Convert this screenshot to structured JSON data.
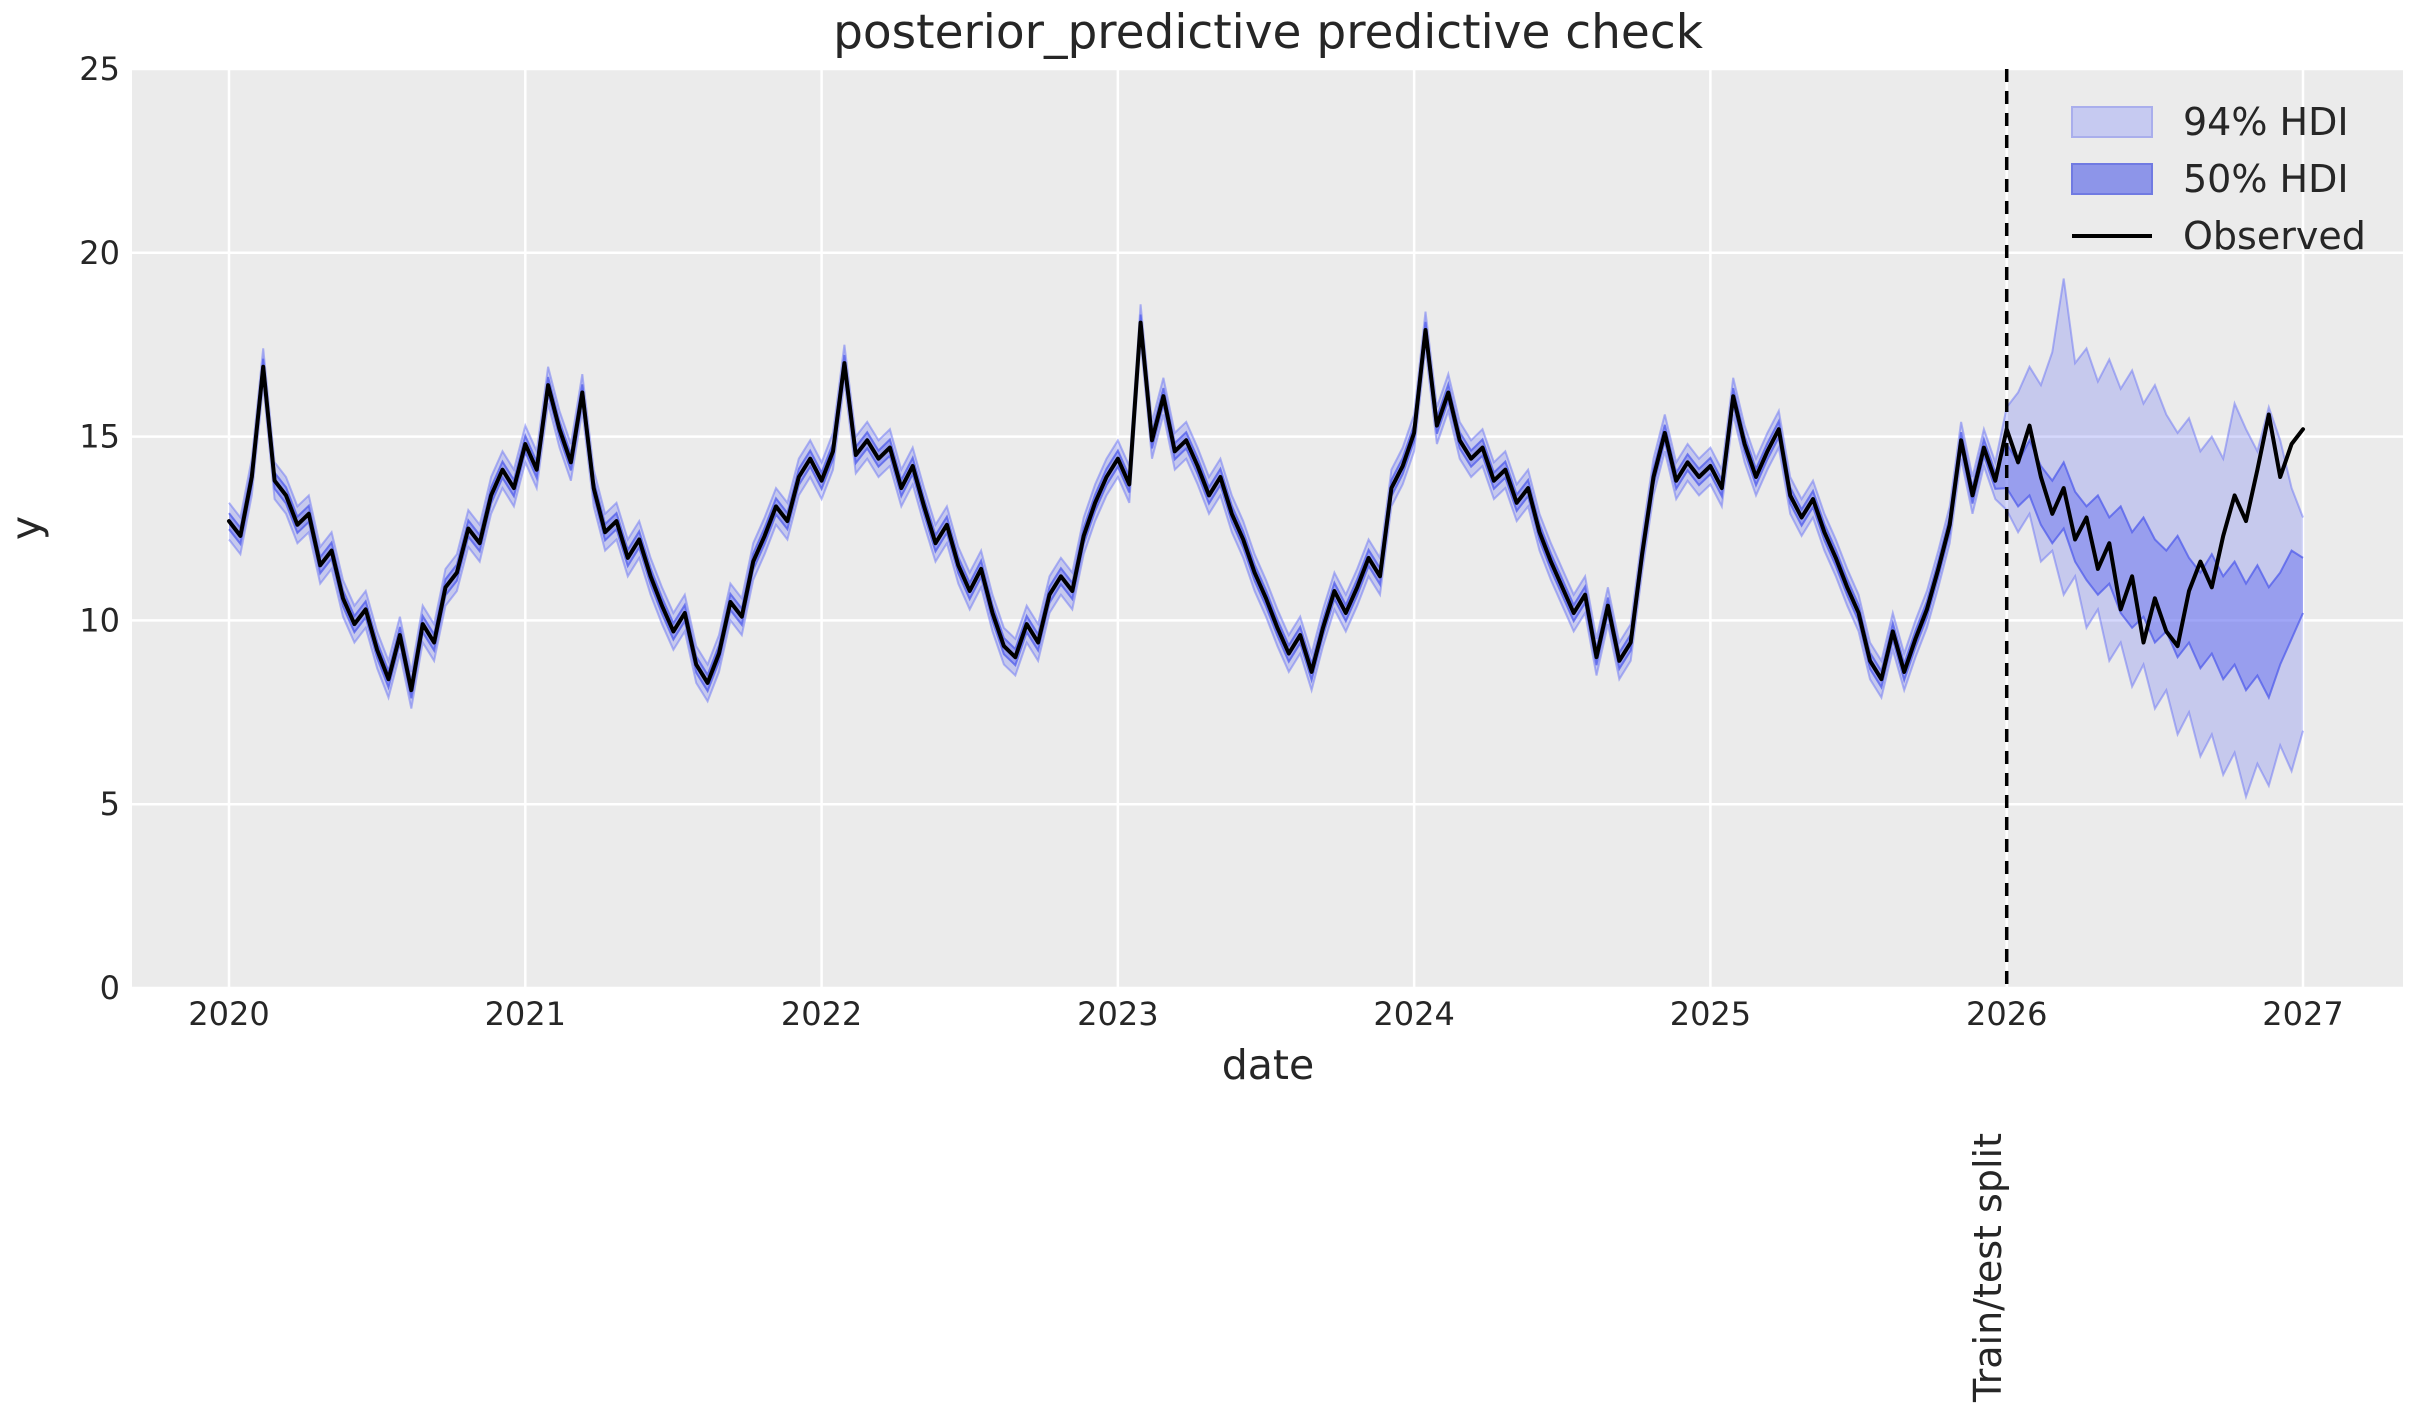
{
  "chart_data": {
    "type": "line",
    "title": "posterior_predictive predictive check",
    "xlabel": "date",
    "ylabel": "y",
    "grid": true,
    "legend_position": "upper right",
    "legend": [
      "94% HDI",
      "50% HDI",
      "Observed"
    ],
    "xticks": [
      2020,
      2021,
      2022,
      2023,
      2024,
      2025,
      2026,
      2027
    ],
    "yticks": [
      0,
      5,
      10,
      15,
      20,
      25
    ],
    "xlim": [
      2019.673,
      2027.337
    ],
    "ylim": [
      0,
      25
    ],
    "x_start": 2020,
    "x_step_years": 0.0384615385,
    "n_points": 183,
    "split": {
      "label": "Train/test split",
      "x": 2026,
      "index": 156
    },
    "observed": [
      12.7,
      12.3,
      13.9,
      16.9,
      13.8,
      13.4,
      12.6,
      12.9,
      11.5,
      11.9,
      10.6,
      9.9,
      10.3,
      9.2,
      8.4,
      9.6,
      8.1,
      9.9,
      9.4,
      10.9,
      11.3,
      12.5,
      12.1,
      13.4,
      14.1,
      13.6,
      14.8,
      14.1,
      16.4,
      15.2,
      14.3,
      16.2,
      13.6,
      12.4,
      12.7,
      11.7,
      12.2,
      11.2,
      10.4,
      9.7,
      10.2,
      8.8,
      8.3,
      9.1,
      10.5,
      10.1,
      11.6,
      12.3,
      13.1,
      12.7,
      13.9,
      14.4,
      13.8,
      14.6,
      17.0,
      14.5,
      14.9,
      14.4,
      14.7,
      13.6,
      14.2,
      13.1,
      12.1,
      12.6,
      11.5,
      10.8,
      11.4,
      10.2,
      9.3,
      9.0,
      9.9,
      9.4,
      10.7,
      11.2,
      10.8,
      12.3,
      13.2,
      13.9,
      14.4,
      13.7,
      18.1,
      14.9,
      16.1,
      14.6,
      14.9,
      14.2,
      13.4,
      13.9,
      12.9,
      12.2,
      11.3,
      10.6,
      9.8,
      9.1,
      9.6,
      8.6,
      9.8,
      10.8,
      10.2,
      10.9,
      11.7,
      11.2,
      13.6,
      14.2,
      15.1,
      17.9,
      15.3,
      16.2,
      14.9,
      14.4,
      14.7,
      13.8,
      14.1,
      13.2,
      13.6,
      12.4,
      11.6,
      10.9,
      10.2,
      10.7,
      9.0,
      10.4,
      8.9,
      9.4,
      11.8,
      13.9,
      15.1,
      13.8,
      14.3,
      13.9,
      14.2,
      13.6,
      16.1,
      14.8,
      13.9,
      14.6,
      15.2,
      13.4,
      12.8,
      13.3,
      12.4,
      11.7,
      10.9,
      10.2,
      8.9,
      8.4,
      9.7,
      8.6,
      9.5,
      10.3,
      11.4,
      12.6,
      14.9,
      13.4,
      14.7,
      13.8,
      15.2,
      14.3,
      15.3,
      13.9,
      12.9,
      13.6,
      12.2,
      12.8,
      11.4,
      12.1,
      10.3,
      11.2,
      9.4,
      10.6,
      9.7,
      9.3,
      10.8,
      11.6,
      10.9,
      12.3,
      13.4,
      12.7,
      14.1,
      15.6,
      13.9,
      14.8,
      15.2
    ],
    "hdi_insample_halfwidths": {
      "hdi94": 0.5,
      "hdi50": 0.22
    },
    "forecast": {
      "hdi94_upper": [
        15.8,
        16.2,
        16.9,
        16.4,
        17.3,
        19.3,
        17.0,
        17.4,
        16.5,
        17.1,
        16.3,
        16.8,
        15.9,
        16.4,
        15.6,
        15.1,
        15.5,
        14.6,
        15.0,
        14.4,
        15.9,
        15.2,
        14.6,
        15.8,
        14.9,
        13.6,
        12.8
      ],
      "hdi94_lower": [
        13.0,
        12.4,
        12.9,
        11.6,
        11.9,
        10.7,
        11.2,
        9.8,
        10.3,
        8.9,
        9.4,
        8.2,
        8.8,
        7.6,
        8.1,
        6.9,
        7.5,
        6.3,
        6.9,
        5.8,
        6.4,
        5.2,
        6.1,
        5.5,
        6.6,
        5.9,
        7.0
      ],
      "hdi50_upper": [
        14.8,
        14.3,
        14.9,
        14.2,
        13.8,
        14.3,
        13.5,
        13.1,
        13.4,
        12.8,
        13.1,
        12.4,
        12.8,
        12.2,
        11.9,
        12.3,
        11.7,
        11.3,
        11.8,
        11.2,
        11.6,
        11.0,
        11.5,
        10.9,
        11.3,
        11.9,
        11.7
      ],
      "hdi50_lower": [
        13.6,
        13.1,
        13.4,
        12.6,
        12.1,
        12.5,
        11.6,
        11.1,
        10.7,
        11.0,
        10.2,
        9.8,
        10.1,
        9.4,
        9.7,
        9.0,
        9.4,
        8.7,
        9.1,
        8.4,
        8.8,
        8.1,
        8.5,
        7.9,
        8.8,
        9.5,
        10.2
      ]
    },
    "colors": {
      "observed": "#000000",
      "hdi94_fill": "rgba(105,115,245,0.28)",
      "hdi94_edge": "rgba(105,115,245,0.50)",
      "hdi50_fill": "rgba(95,106,240,0.45)",
      "hdi50_edge": "rgba(80,92,235,0.75)",
      "axes_background": "#ebebeb",
      "figure_background": "#ffffff",
      "grid": "#ffffff",
      "text": "#262626",
      "split_line": "#000000",
      "legend_94_patch": "#c6caf1",
      "legend_94_border": "#a9aeec",
      "legend_50_patch": "#8d95e9",
      "legend_50_border": "#707ae2"
    }
  }
}
